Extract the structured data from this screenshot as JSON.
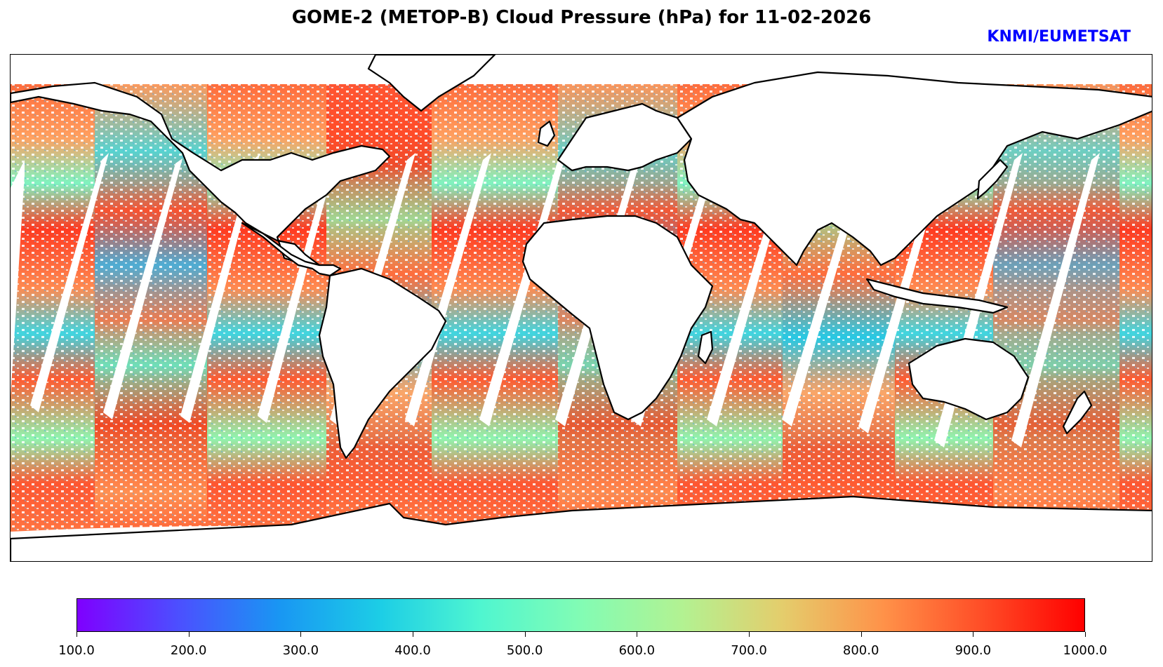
{
  "title": "GOME-2 (METOP-B) Cloud Pressure (hPa) for 11-02-2026",
  "credit": "KNMI/EUMETSAT",
  "credit_color": "#0000ff",
  "map": {
    "variable": "Cloud Pressure (hPa)",
    "instrument": "GOME-2",
    "platform": "METOP-B",
    "date": "11-02-2026",
    "projection": "equirectangular",
    "coastline_color": "#000000"
  },
  "colorbar": {
    "colormap": "rainbow",
    "min": 100.0,
    "max": 1000.0,
    "ticks": [
      "100.0",
      "200.0",
      "300.0",
      "400.0",
      "500.0",
      "600.0",
      "700.0",
      "800.0",
      "900.0",
      "1000.0"
    ],
    "colors": [
      "#7f00ff",
      "#4c4fff",
      "#1996f3",
      "#1ccde6",
      "#4ff6d0",
      "#82fcb4",
      "#b2f292",
      "#e4cd6c",
      "#ff9249",
      "#ff4c26",
      "#ff0000"
    ]
  }
}
